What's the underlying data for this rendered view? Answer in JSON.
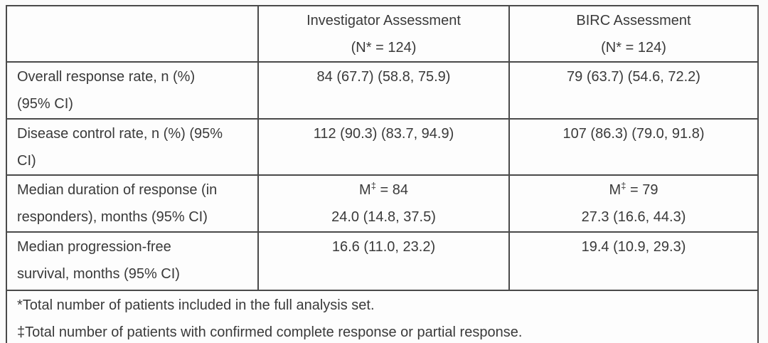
{
  "header": {
    "corner": "",
    "col_investigator": {
      "title": "Investigator Assessment",
      "n_line": "(N* = 124)"
    },
    "col_birc": {
      "title": "BIRC Assessment",
      "n_line": "(N* = 124)"
    }
  },
  "rows": {
    "orr": {
      "label_line1": "Overall response rate, n (%)",
      "label_line2": "(95% CI)",
      "investigator": "84 (67.7) (58.8, 75.9)",
      "birc": "79 (63.7) (54.6, 72.2)"
    },
    "dcr": {
      "label_line1": "Disease control rate, n (%) (95%",
      "label_line2": "CI)",
      "investigator": "112 (90.3) (83.7, 94.9)",
      "birc": "107 (86.3) (79.0, 91.8)"
    },
    "dor": {
      "label_line1": "Median duration of response (in",
      "label_line2": "responders), months (95% CI)",
      "investigator": {
        "m_prefix": "M",
        "m_sup": "‡",
        "m_rest": " = 84",
        "ci_line": "24.0 (14.8, 37.5)"
      },
      "birc": {
        "m_prefix": "M",
        "m_sup": "‡",
        "m_rest": " = 79",
        "ci_line": "27.3 (16.6, 44.3)"
      }
    },
    "pfs": {
      "label_line1": "Median progression-free",
      "label_line2": "survival, months (95% CI)",
      "investigator": "16.6 (11.0, 23.2)",
      "birc": "19.4 (10.9, 29.3)"
    }
  },
  "footnotes": {
    "line1": "*Total number of patients included in the full analysis set.",
    "line2": "‡Total number of patients with confirmed complete response or partial response."
  },
  "chart_data": {
    "type": "table",
    "columns": [
      "",
      "Investigator Assessment (N* = 124)",
      "BIRC Assessment (N* = 124)"
    ],
    "rows": [
      [
        "Overall response rate, n (%) (95% CI)",
        "84 (67.7) (58.8, 75.9)",
        "79 (63.7) (54.6, 72.2)"
      ],
      [
        "Disease control rate, n (%) (95% CI)",
        "112 (90.3) (83.7, 94.9)",
        "107 (86.3) (79.0, 91.8)"
      ],
      [
        "Median duration of response (in responders), months (95% CI)",
        "M‡ = 84; 24.0 (14.8, 37.5)",
        "M‡ = 79; 27.3 (16.6, 44.3)"
      ],
      [
        "Median progression-free survival, months (95% CI)",
        "16.6 (11.0, 23.2)",
        "19.4 (10.9, 29.3)"
      ]
    ],
    "footnotes": [
      "*Total number of patients included in the full analysis set.",
      "‡Total number of patients with confirmed complete response or partial response."
    ]
  }
}
